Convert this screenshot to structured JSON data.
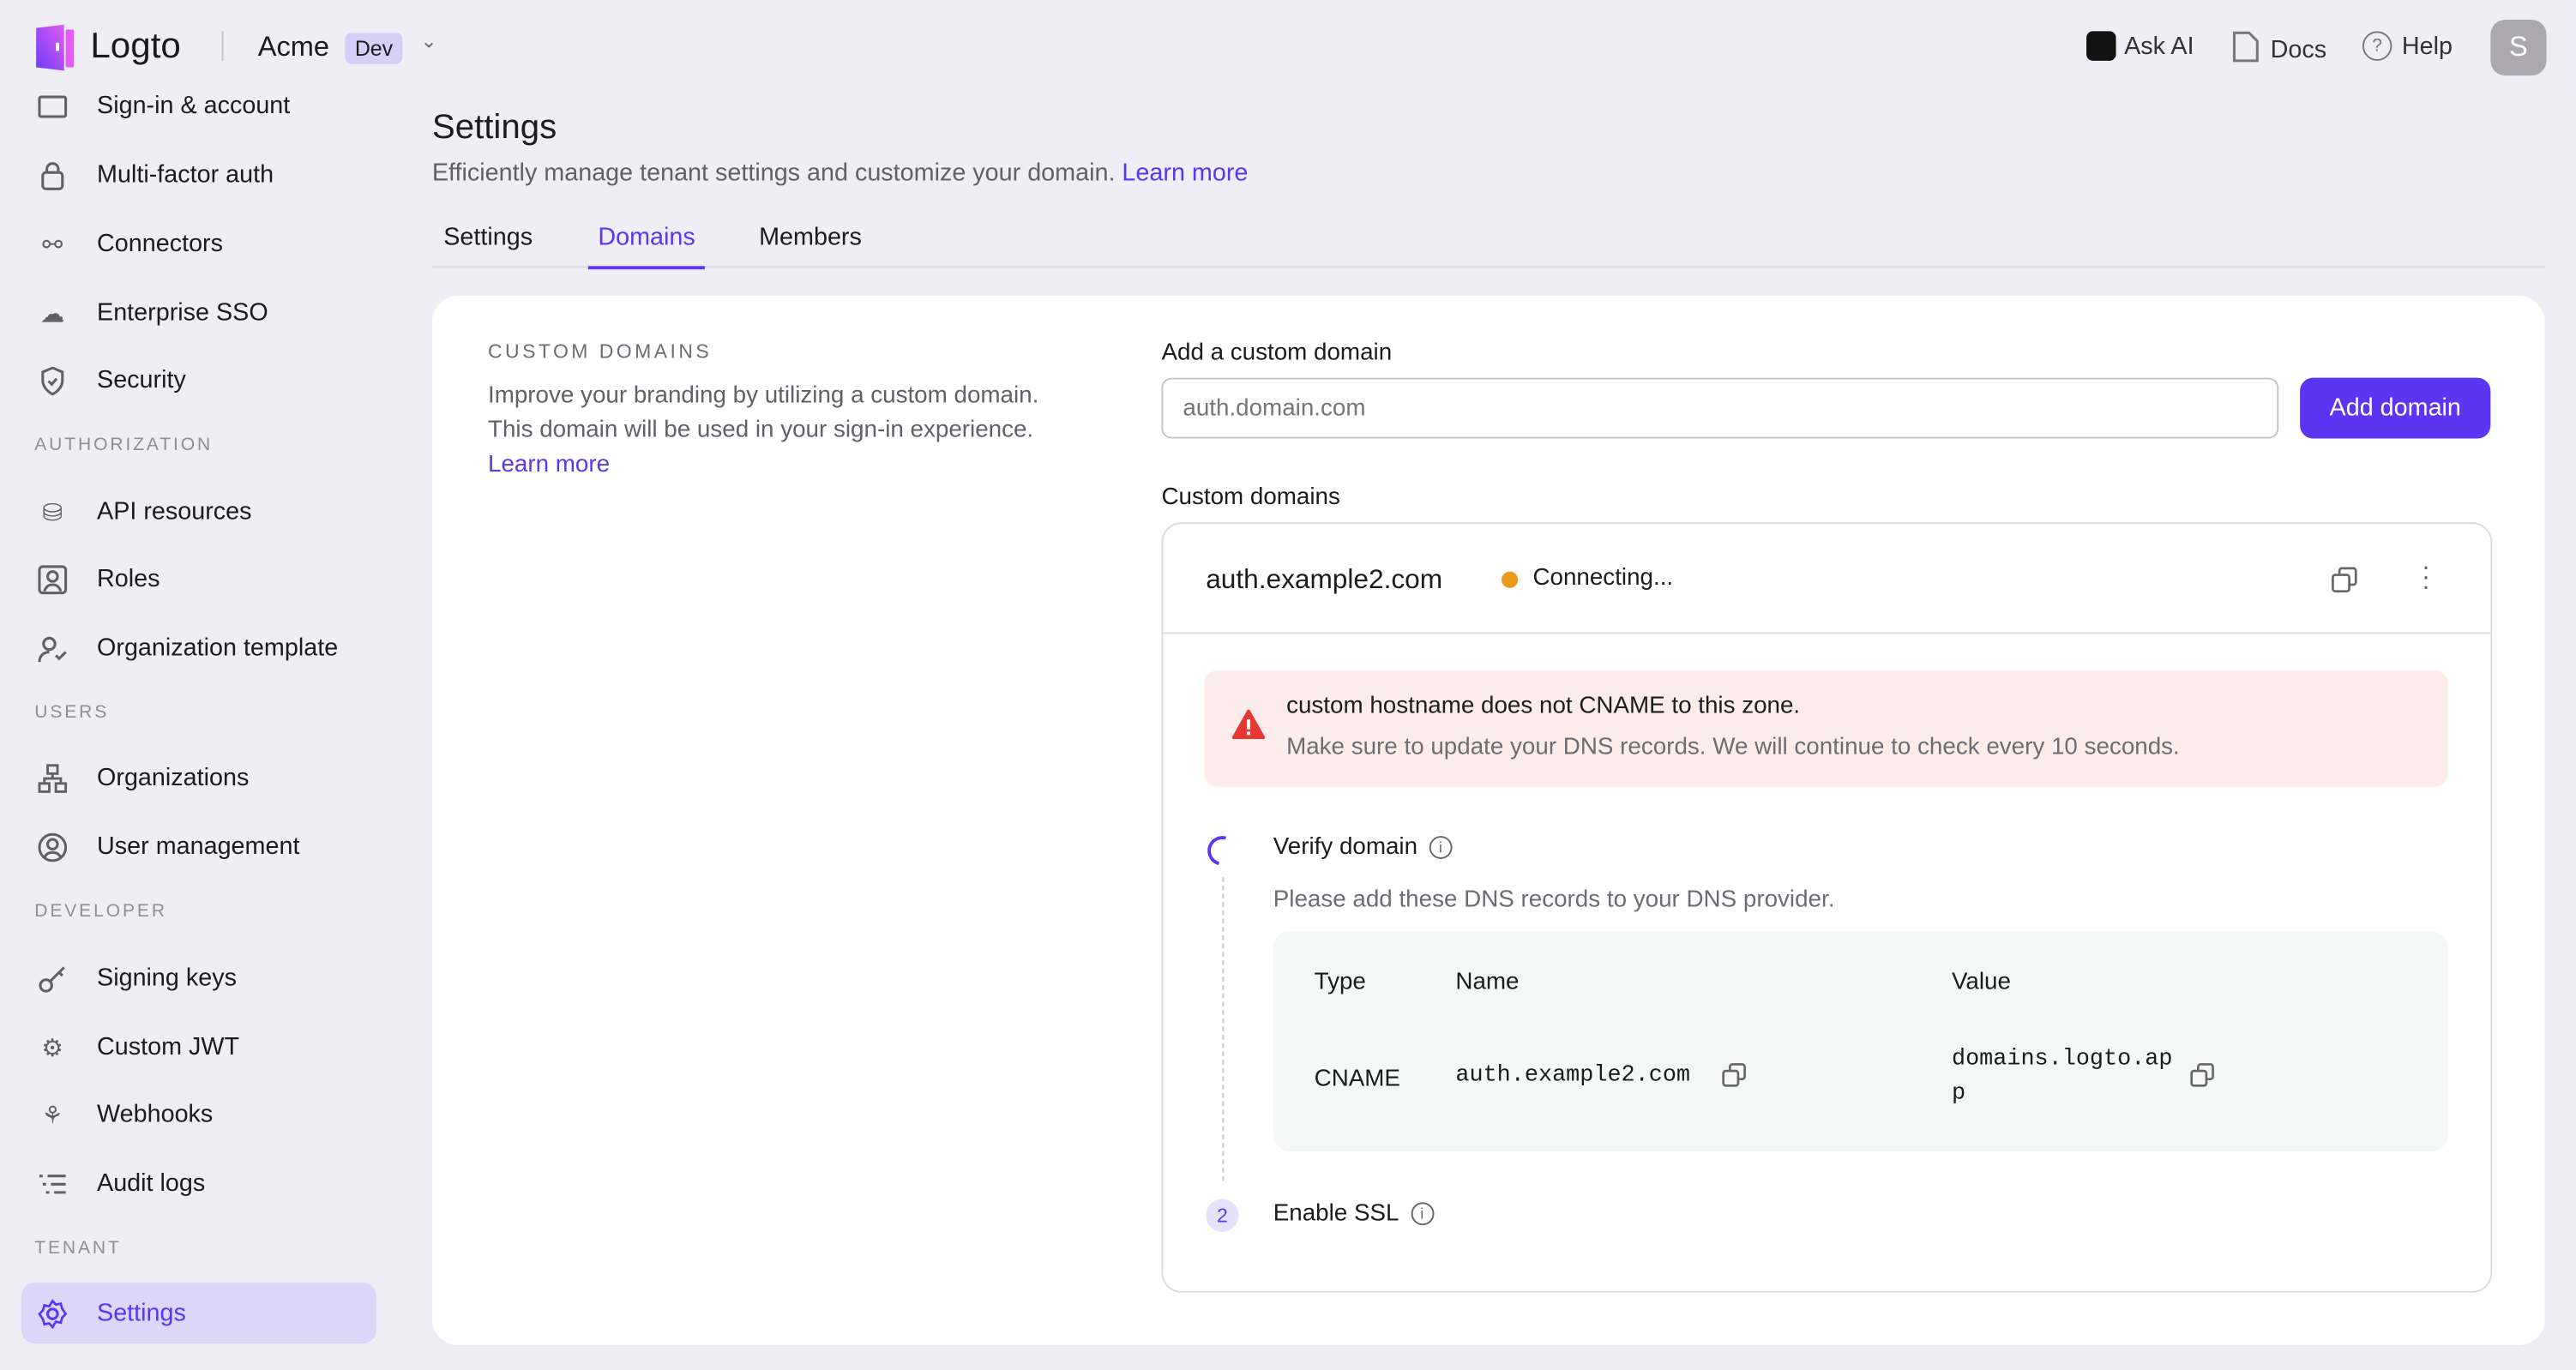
{
  "header": {
    "brand": "Logto",
    "tenant": "Acme",
    "env_badge": "Dev",
    "ask_ai": "Ask AI",
    "docs": "Docs",
    "help": "Help",
    "avatar_initial": "S"
  },
  "sidebar": {
    "items_top": [
      {
        "label": "Sign-in & account",
        "icon": "window-icon"
      },
      {
        "label": "Multi-factor auth",
        "icon": "lock-icon"
      },
      {
        "label": "Connectors",
        "icon": "connector-icon"
      },
      {
        "label": "Enterprise SSO",
        "icon": "cloud-icon"
      },
      {
        "label": "Security",
        "icon": "shield-icon"
      }
    ],
    "section_authorization": "AUTHORIZATION",
    "items_authorization": [
      {
        "label": "API resources",
        "icon": "api-icon"
      },
      {
        "label": "Roles",
        "icon": "role-icon"
      },
      {
        "label": "Organization template",
        "icon": "user-check-icon"
      }
    ],
    "section_users": "USERS",
    "items_users": [
      {
        "label": "Organizations",
        "icon": "organization-icon"
      },
      {
        "label": "User management",
        "icon": "user-circle-icon"
      }
    ],
    "section_developer": "DEVELOPER",
    "items_developer": [
      {
        "label": "Signing keys",
        "icon": "key-icon"
      },
      {
        "label": "Custom JWT",
        "icon": "jwt-icon"
      },
      {
        "label": "Webhooks",
        "icon": "webhook-icon"
      },
      {
        "label": "Audit logs",
        "icon": "list-icon"
      }
    ],
    "section_tenant": "TENANT",
    "items_tenant": [
      {
        "label": "Settings",
        "icon": "gear-icon",
        "active": true
      }
    ]
  },
  "page": {
    "title": "Settings",
    "subtitle": "Efficiently manage tenant settings and customize your domain.",
    "learn_more": "Learn more",
    "tabs": [
      {
        "label": "Settings"
      },
      {
        "label": "Domains",
        "active": true
      },
      {
        "label": "Members"
      }
    ]
  },
  "card": {
    "section_title": "CUSTOM DOMAINS",
    "description": "Improve your branding by utilizing a custom domain. This domain will be used in your sign-in experience.",
    "learn_more": "Learn more",
    "add_label": "Add a custom domain",
    "add_placeholder": "auth.domain.com",
    "add_button": "Add domain",
    "list_label": "Custom domains",
    "domain": {
      "name": "auth.example2.com",
      "status": "Connecting...",
      "status_color": "#eb9918",
      "error_title": "custom hostname does not CNAME to this zone.",
      "error_detail": "Make sure to update your DNS records. We will continue to check every 10 seconds.",
      "step1_title": "Verify domain",
      "step1_desc": "Please add these DNS records to your DNS provider.",
      "table": {
        "headers": [
          "Type",
          "Name",
          "Value"
        ],
        "row": [
          "CNAME",
          "auth.example2.com",
          "domains.logto.app"
        ]
      },
      "step2_number": "2",
      "step2_title": "Enable SSL"
    }
  },
  "colors": {
    "accent": "#5d34f2",
    "background": "#efedf6",
    "error_bg": "#fdecea",
    "error_icon": "#e53935"
  }
}
